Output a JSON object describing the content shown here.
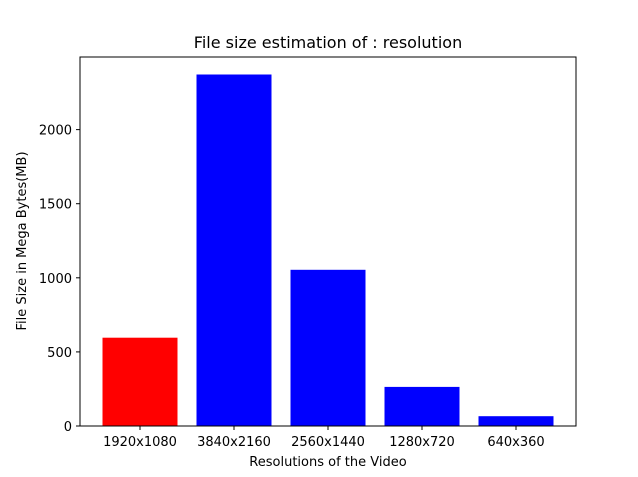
{
  "chart_data": {
    "type": "bar",
    "title": "File size estimation of : resolution",
    "xlabel": "Resolutions of the Video",
    "ylabel": "File Size in Mega Bytes(MB)",
    "categories": [
      "1920x1080",
      "3840x2160",
      "2560x1440",
      "1280x720",
      "640x360"
    ],
    "values": [
      596,
      2372,
      1054,
      264,
      66
    ],
    "colors": [
      "#ff0000",
      "#0000ff",
      "#0000ff",
      "#0000ff",
      "#0000ff"
    ],
    "ylim": [
      0,
      2490
    ],
    "yticks": [
      0,
      500,
      1000,
      1500,
      2000
    ],
    "grid": false
  }
}
